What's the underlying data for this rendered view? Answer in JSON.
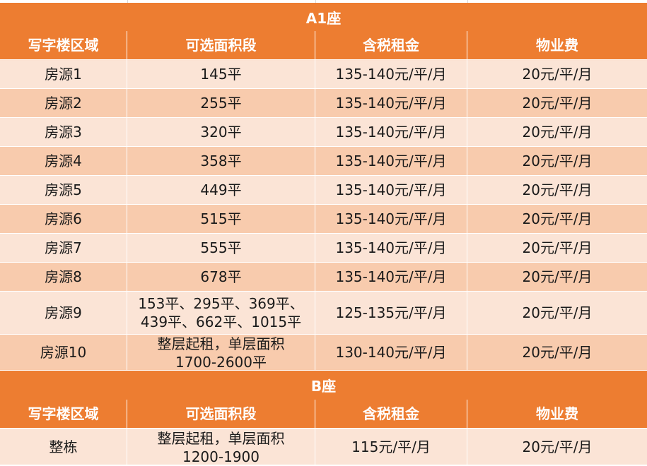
{
  "sections": [
    {
      "title": "A1座",
      "headers": [
        "写字楼区域",
        "可选面积段",
        "含税租金",
        "物业费"
      ],
      "rows": [
        [
          "房源1",
          "145平",
          "135-140元/平/月",
          "20元/平/月"
        ],
        [
          "房源2",
          "255平",
          "135-140元/平/月",
          "20元/平/月"
        ],
        [
          "房源3",
          "320平",
          "135-140元/平/月",
          "20元/平/月"
        ],
        [
          "房源4",
          "358平",
          "135-140元/平/月",
          "20元/平/月"
        ],
        [
          "房源5",
          "449平",
          "135-140元/平/月",
          "20元/平/月"
        ],
        [
          "房源6",
          "515平",
          "135-140元/平/月",
          "20元/平/月"
        ],
        [
          "房源7",
          "555平",
          "135-140元/平/月",
          "20元/平/月"
        ],
        [
          "房源8",
          "678平",
          "135-140元/平/月",
          "20元/平/月"
        ],
        [
          "房源9",
          "153平、295平、369平、\n439平、662平、1015平",
          "125-135元/平/月",
          "20元/平/月"
        ],
        [
          "房源10",
          "整层起租，单层面积\n1700-2600平",
          "130-140元/平/月",
          "20元/平/月"
        ]
      ]
    },
    {
      "title": "B座",
      "headers": [
        "写字楼区域",
        "可选面积段",
        "含税租金",
        "物业费"
      ],
      "rows": [
        [
          "整栋",
          "整层起租，单层面积\n1200-1900",
          "115元/平/月",
          "20元/平/月"
        ]
      ]
    }
  ],
  "colors": {
    "header_bg": "#ed7d31",
    "row_light": "#fbe4d6",
    "row_dark": "#f8cbad"
  }
}
